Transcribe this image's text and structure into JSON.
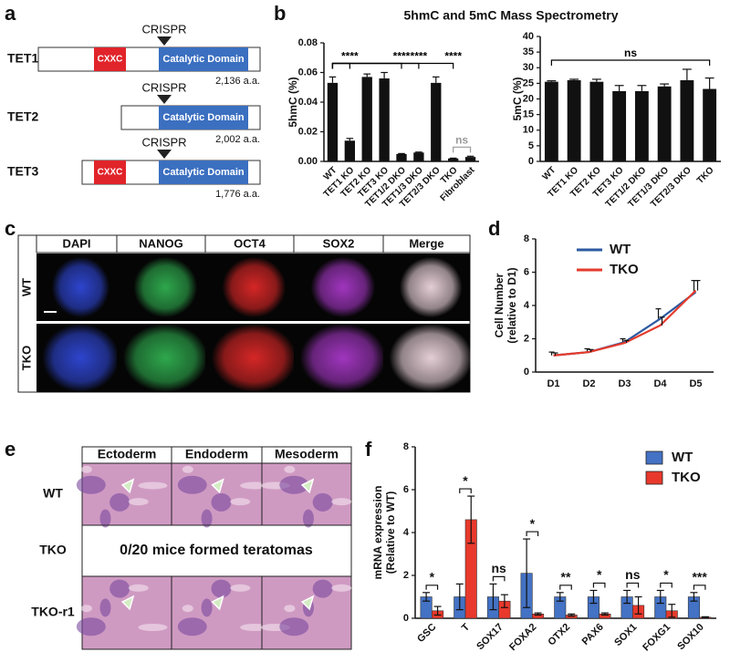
{
  "panel_labels": [
    "a",
    "b",
    "c",
    "d",
    "e",
    "f"
  ],
  "diagram": {
    "proteins": [
      {
        "name": "TET1",
        "crispr": "CRISPR",
        "cxxc": "CXXC",
        "domain": "Catalytic Domain",
        "length": "2,136 a.a."
      },
      {
        "name": "TET2",
        "crispr": "CRISPR",
        "domain": "Catalytic Domain",
        "length": "2,002 a.a."
      },
      {
        "name": "TET3",
        "crispr": "CRISPR",
        "cxxc": "CXXC",
        "domain": "Catalytic Domain",
        "length": "1,776 a.a."
      }
    ]
  },
  "mass_spec_title": "5hmC and 5mC Mass Spectrometry",
  "chart_data": [
    {
      "type": "bar",
      "ylabel": "5hmC (%)",
      "categories": [
        "WT",
        "TET1 KO",
        "TET2 KO",
        "TET3 KO",
        "TET1/2 DKO",
        "TET1/3 DKO",
        "TET2/3 DKO",
        "TKO",
        "Fibroblast"
      ],
      "values": [
        0.053,
        0.014,
        0.057,
        0.056,
        0.005,
        0.006,
        0.053,
        0.002,
        0.003
      ],
      "errors": [
        0.004,
        0.0015,
        0.002,
        0.004,
        0.0003,
        0.0003,
        0.004,
        0.0002,
        0.0005
      ],
      "color": "#111111",
      "ylim": [
        0,
        0.08
      ],
      "yticks": [
        {
          "value": 0,
          "label": "0.00"
        },
        {
          "value": 0.02,
          "label": "0.02"
        },
        {
          "value": 0.04,
          "label": "0.04"
        },
        {
          "value": 0.06,
          "label": "0.06"
        },
        {
          "value": 0.08,
          "label": "0.08"
        }
      ],
      "brackets": [
        {
          "label": "****",
          "from": 0,
          "to": 1,
          "color": "#000000"
        },
        {
          "label": "****",
          "from": 0,
          "to": 4,
          "color": "#000000"
        },
        {
          "label": "****",
          "from": 0,
          "to": 5,
          "color": "#000000"
        },
        {
          "label": "****",
          "from": 0,
          "to": 7,
          "color": "#000000"
        },
        {
          "label": "ns",
          "from": 7,
          "to": 8,
          "color": "#9a9a9a"
        }
      ]
    },
    {
      "type": "bar",
      "ylabel": "5mC (%)",
      "categories": [
        "WT",
        "TET1 KO",
        "TET2 KO",
        "TET3 KO",
        "TET1/2 DKO",
        "TET1/3 DKO",
        "TET2/3 DKO",
        "TKO"
      ],
      "values": [
        25.5,
        26,
        25.5,
        22.5,
        22.5,
        24,
        26,
        23.2
      ],
      "errors": [
        0.3,
        0.3,
        0.8,
        1.8,
        1.8,
        0.8,
        3.5,
        3.5
      ],
      "color": "#111111",
      "ylim": [
        0,
        40
      ],
      "yticks": [
        0,
        5,
        10,
        15,
        20,
        25,
        30,
        35,
        40
      ],
      "brackets": [
        {
          "label": "ns",
          "from": 0,
          "to": 7,
          "color": "#000000"
        }
      ]
    },
    {
      "type": "line",
      "ylabel": [
        "Cell Number",
        "(relative to D1)"
      ],
      "categories": [
        "D1",
        "D2",
        "D3",
        "D4",
        "D5"
      ],
      "series": [
        {
          "name": "WT",
          "color": "#2c5aa0",
          "values": [
            1,
            1.2,
            1.8,
            3.2,
            4.8
          ],
          "errors": [
            0.2,
            0.2,
            0.2,
            0.6,
            0.7
          ]
        },
        {
          "name": "TKO",
          "color": "#e53b2c",
          "values": [
            1,
            1.2,
            1.75,
            2.8,
            4.9
          ],
          "errors": [
            0.15,
            0.15,
            0.15,
            0.5,
            0.6
          ]
        }
      ],
      "ylim": [
        0,
        8
      ],
      "yticks": [
        0,
        2,
        4,
        6,
        8
      ],
      "legend": "top-left"
    },
    {
      "type": "bar",
      "ylabel": [
        "mRNA expression",
        "(Relative to WT)"
      ],
      "categories": [
        "GSC",
        "T",
        "SOX17",
        "FOXA2",
        "OTX2",
        "PAX6",
        "SOX1",
        "FOXG1",
        "SOX10"
      ],
      "series": [
        {
          "name": "WT",
          "color": "#4472c4",
          "values": [
            1,
            1,
            1,
            2.1,
            1,
            1,
            1,
            1,
            1
          ],
          "errors": [
            0.2,
            0.6,
            0.6,
            1.6,
            0.2,
            0.3,
            0.3,
            0.3,
            0.2
          ]
        },
        {
          "name": "TKO",
          "color": "#e8392c",
          "values": [
            0.35,
            4.6,
            0.8,
            0.2,
            0.15,
            0.2,
            0.6,
            0.35,
            0.05
          ],
          "errors": [
            0.2,
            1.1,
            0.3,
            0.05,
            0.05,
            0.05,
            0.4,
            0.3,
            0.02
          ]
        }
      ],
      "significance": [
        "*",
        "*",
        "ns",
        "*",
        "**",
        "*",
        "ns",
        "*",
        "***"
      ],
      "ylim": [
        0,
        8
      ],
      "yticks": [
        0,
        2,
        4,
        6,
        8
      ],
      "legend": "top-right"
    }
  ],
  "staining": {
    "columns": [
      "DAPI",
      "NANOG",
      "OCT4",
      "SOX2",
      "Merge"
    ],
    "rows": [
      "WT",
      "TKO"
    ]
  },
  "teratoma": {
    "columns": [
      "Ectoderm",
      "Endoderm",
      "Mesoderm"
    ],
    "rows": [
      "WT",
      "TKO",
      "TKO-r1"
    ],
    "tko_note": "0/20 mice formed teratomas"
  }
}
